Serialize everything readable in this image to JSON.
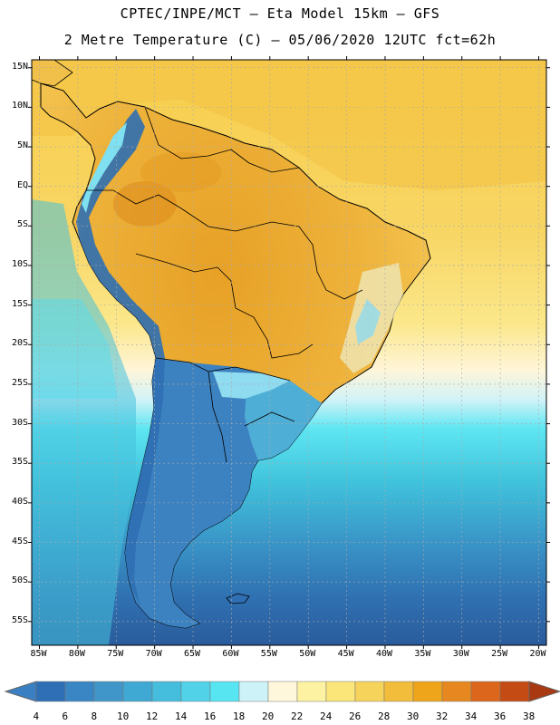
{
  "title": {
    "line1": "CPTEC/INPE/MCT –  Eta Model 15km – GFS",
    "line2": "2 Metre Temperature (C) – 05/06/2020 12UTC fct=62h"
  },
  "map": {
    "region": "South America",
    "lat_labels": [
      "15N",
      "10N",
      "5N",
      "EQ",
      "5S",
      "10S",
      "15S",
      "20S",
      "25S",
      "30S",
      "35S",
      "40S",
      "45S",
      "50S",
      "55S"
    ],
    "lon_labels": [
      "85W",
      "80W",
      "75W",
      "70W",
      "65W",
      "60W",
      "55W",
      "50W",
      "45W",
      "40W",
      "35W",
      "30W",
      "25W",
      "20W"
    ],
    "lat_values": [
      15,
      10,
      5,
      0,
      -5,
      -10,
      -15,
      -20,
      -25,
      -30,
      -35,
      -40,
      -45,
      -50,
      -55
    ],
    "lon_values": [
      -85,
      -80,
      -75,
      -70,
      -65,
      -60,
      -55,
      -50,
      -45,
      -40,
      -35,
      -30,
      -25,
      -20
    ],
    "lat_range": [
      -58,
      16
    ],
    "lon_range": [
      -86,
      -19
    ],
    "variable": "2 Metre Temperature",
    "units": "C",
    "colors": {
      "ocean_north": "#f6d055",
      "ocean_tropical": "#f5dd74",
      "land_hot": "#eba82a",
      "land_warm": "#f1c04a",
      "andes_cold": "#2f72b6",
      "south_land": "#3b7fbe",
      "ocean_cool": "#3cc9de",
      "ocean_cold": "#3079be",
      "far_south": "#2a5d9f",
      "grid": "#aaaaaa",
      "border": "#000000"
    }
  },
  "colorbar": {
    "labels": [
      "4",
      "6",
      "8",
      "10",
      "12",
      "14",
      "16",
      "18",
      "20",
      "22",
      "24",
      "26",
      "28",
      "30",
      "32",
      "34",
      "36",
      "38"
    ],
    "colors": [
      "#3a7fc1",
      "#2f6fb6",
      "#3a85c3",
      "#4096c9",
      "#3fa9d3",
      "#45bddd",
      "#51d2e8",
      "#58e5f2",
      "#cdf2f8",
      "#fff7dc",
      "#fdf2a2",
      "#fbe67a",
      "#f6d35b",
      "#f1bd3a",
      "#eea51b",
      "#e6881f",
      "#dc661b",
      "#c54b14",
      "#a83910"
    ]
  }
}
